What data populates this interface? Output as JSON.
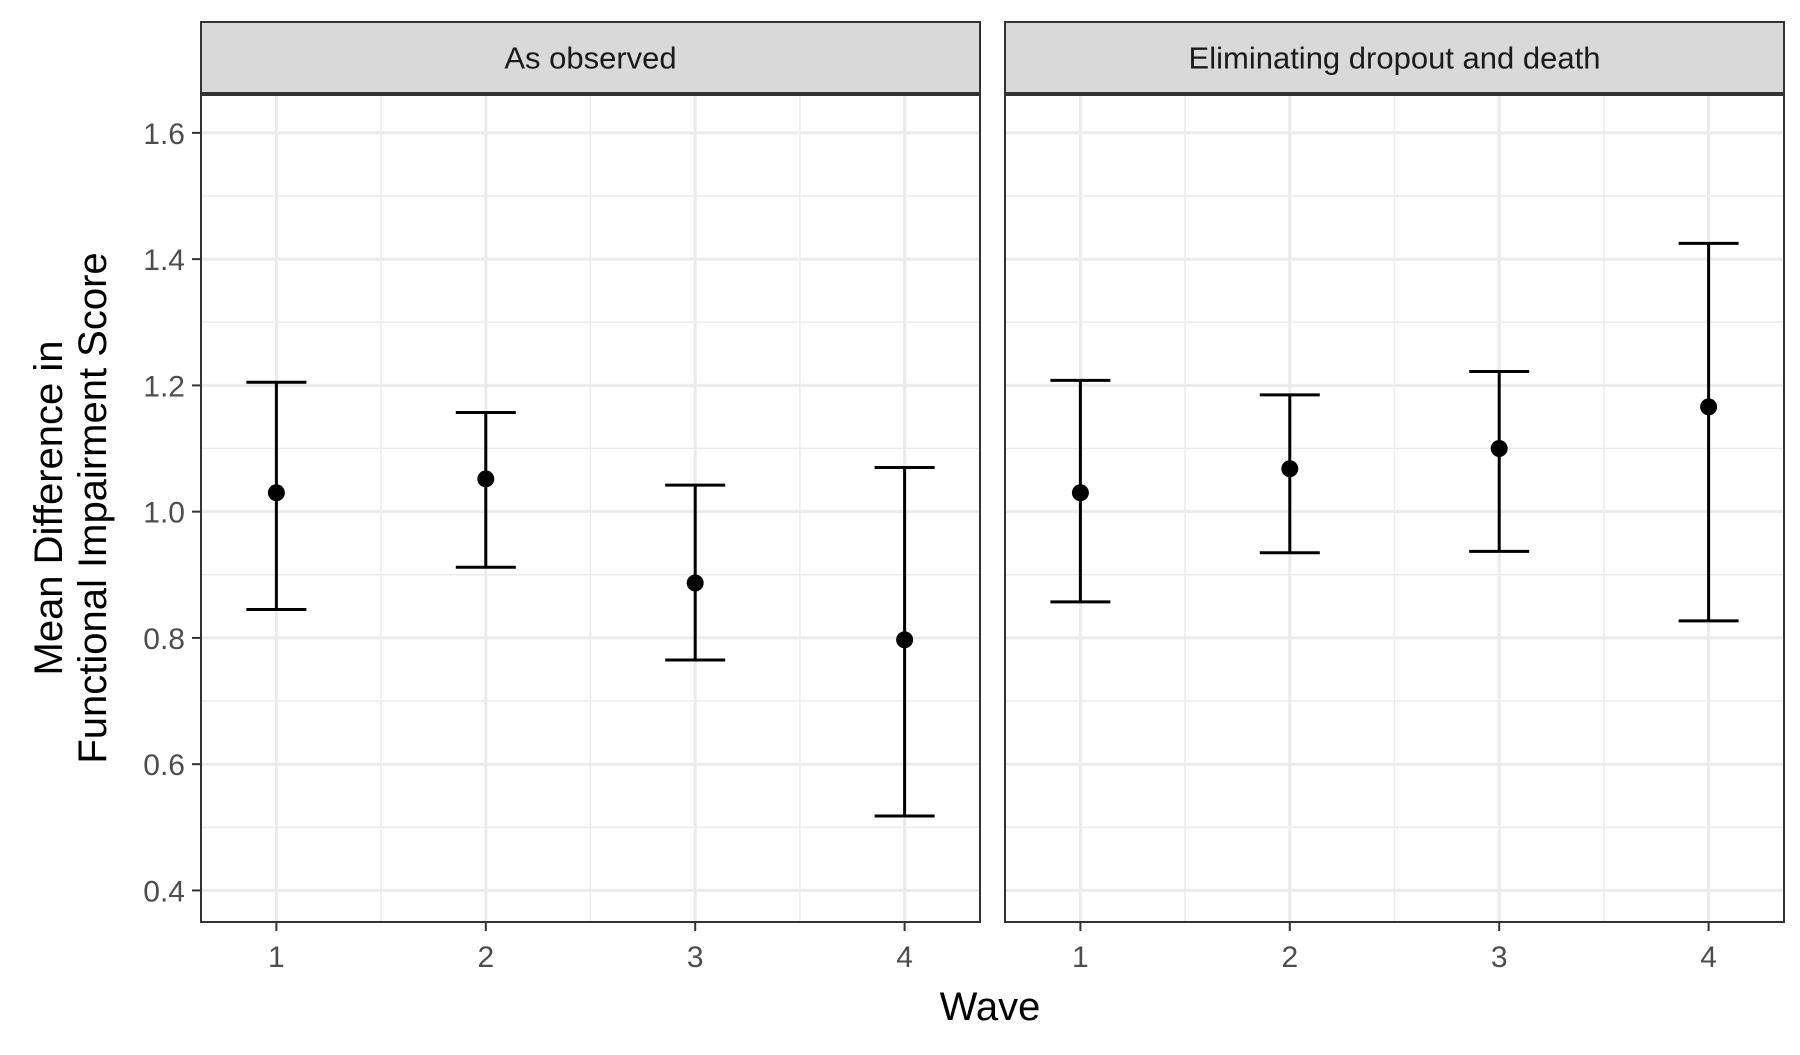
{
  "chart_data": {
    "type": "errorbar",
    "xlabel": "Wave",
    "ylabel_lines": [
      "Mean Difference in",
      "Functional Impairment Score"
    ],
    "ylim": [
      0.35,
      1.66
    ],
    "yticks": [
      "0.4",
      "0.6",
      "0.8",
      "1.0",
      "1.2",
      "1.4",
      "1.6"
    ],
    "ytick_values": [
      0.4,
      0.6,
      0.8,
      1.0,
      1.2,
      1.4,
      1.6
    ],
    "xticks": [
      "1",
      "2",
      "3",
      "4"
    ],
    "xtick_values": [
      1,
      2,
      3,
      4
    ],
    "grid": true,
    "colors": {
      "strip_fill": "#d9d9d9",
      "grid": "#ebebeb",
      "mark": "#000000",
      "border": "#333333",
      "tick_text": "#4d4d4d"
    },
    "panels": [
      {
        "strip_label": "As observed",
        "points": [
          {
            "x": 1,
            "y": 1.03,
            "lower": 0.845,
            "upper": 1.205
          },
          {
            "x": 2,
            "y": 1.052,
            "lower": 0.912,
            "upper": 1.157
          },
          {
            "x": 3,
            "y": 0.887,
            "lower": 0.765,
            "upper": 1.042
          },
          {
            "x": 4,
            "y": 0.797,
            "lower": 0.518,
            "upper": 1.07
          }
        ]
      },
      {
        "strip_label": "Eliminating dropout and death",
        "points": [
          {
            "x": 1,
            "y": 1.03,
            "lower": 0.857,
            "upper": 1.208
          },
          {
            "x": 2,
            "y": 1.068,
            "lower": 0.935,
            "upper": 1.185
          },
          {
            "x": 3,
            "y": 1.1,
            "lower": 0.937,
            "upper": 1.222
          },
          {
            "x": 4,
            "y": 1.166,
            "lower": 0.827,
            "upper": 1.425
          }
        ]
      }
    ]
  }
}
